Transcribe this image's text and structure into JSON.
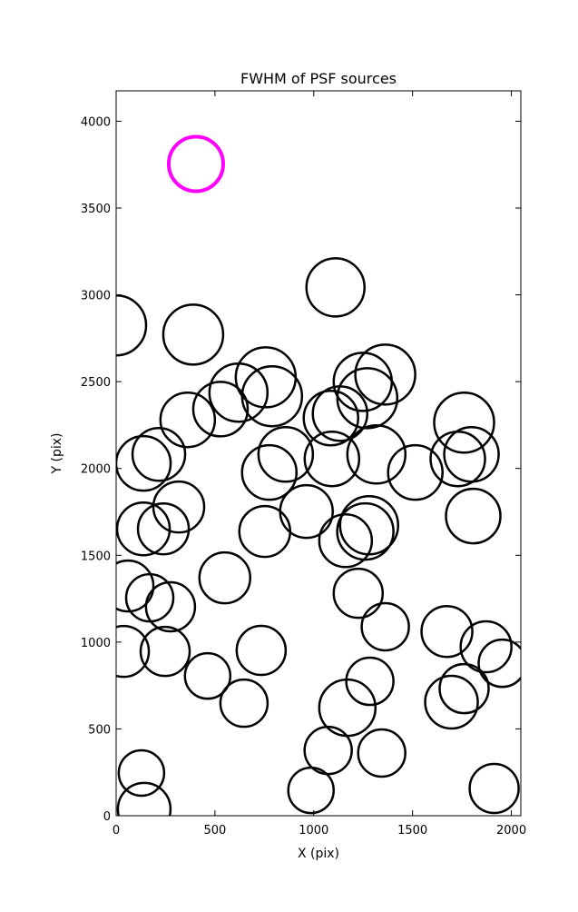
{
  "chart_data": {
    "type": "scatter",
    "title": "FWHM of PSF sources",
    "x_label": "X (pix)",
    "y_label": "Y (pix)",
    "xlim": [
      0,
      2048
    ],
    "ylim": [
      0,
      4175
    ],
    "xticks": [
      0,
      500,
      1000,
      1500,
      2000
    ],
    "yticks": [
      0,
      500,
      1000,
      1500,
      2000,
      2500,
      3000,
      3500,
      4000
    ],
    "series": [
      {
        "color": "#ff00ff",
        "x": [
          404
        ],
        "y": [
          3754
        ],
        "sizes": [
          30
        ]
      },
      {
        "color": "#000000",
        "x": [
          0,
          1110,
          390,
          757,
          789,
          619,
          528,
          1362,
          1248,
          1271,
          1133,
          1087,
          362,
          1761,
          1798,
          1729,
          1317,
          1514,
          1092,
          858,
          775,
          216,
          138,
          317,
          138,
          239,
          963,
          752,
          1280,
          1261,
          1161,
          1807,
          60,
          550,
          170,
          275,
          1225,
          1362,
          1674,
          1872,
          1954,
          37,
          248,
          734,
          463,
          647,
          1284,
          1170,
          1761,
          1697,
          1073,
          1344,
          986,
          128,
          142,
          1913
        ],
        "y": [
          2824,
          3043,
          2771,
          2525,
          2416,
          2437,
          2342,
          2541,
          2499,
          2405,
          2316,
          2290,
          2280,
          2264,
          2081,
          2055,
          2081,
          1977,
          2055,
          2081,
          1977,
          2081,
          2029,
          1778,
          1652,
          1652,
          1752,
          1637,
          1673,
          1637,
          1584,
          1726,
          1323,
          1370,
          1255,
          1203,
          1281,
          1088,
          1061,
          973,
          878,
          946,
          946,
          952,
          805,
          648,
          774,
          622,
          732,
          654,
          376,
          361,
          146,
          246,
          37,
          157
        ],
        "sizes": [
          33,
          32,
          33,
          33,
          33,
          32,
          30,
          33,
          32,
          33,
          30,
          30,
          30,
          33,
          30,
          30,
          32,
          30,
          30,
          30,
          30,
          29,
          30,
          28,
          29,
          28,
          29,
          28,
          32,
          31,
          29,
          30,
          28,
          28,
          26,
          27,
          27,
          26,
          28,
          28,
          26,
          28,
          27,
          27,
          25,
          26,
          26,
          31,
          27,
          29,
          26,
          26,
          25,
          25,
          29,
          27
        ]
      }
    ]
  }
}
